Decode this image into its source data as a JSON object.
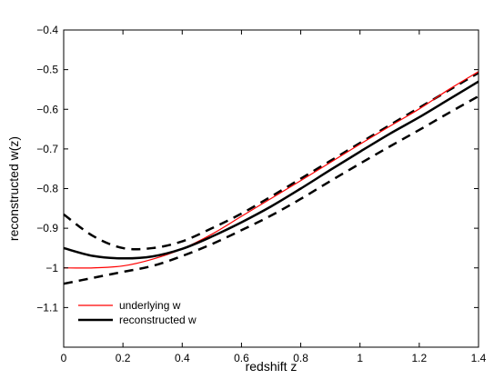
{
  "chart_data": {
    "type": "line",
    "xlabel": "redshift z",
    "ylabel": "reconstructed w(z)",
    "xlim": [
      0,
      1.4
    ],
    "ylim": [
      -1.2,
      -0.4
    ],
    "xticks": [
      0,
      0.2,
      0.4,
      0.6,
      0.8,
      1,
      1.2,
      1.4
    ],
    "xtick_labels": [
      "0",
      "0.2",
      "0.4",
      "0.6",
      "0.8",
      "1",
      "1.2",
      "1.4"
    ],
    "yticks": [
      -1.1,
      -1,
      -0.9,
      -0.8,
      -0.7,
      -0.6,
      -0.5,
      -0.4
    ],
    "ytick_labels": [
      "−1.1",
      "−1",
      "−0.9",
      "−0.8",
      "−0.7",
      "−0.6",
      "−0.5",
      "−0.4"
    ],
    "grid": false,
    "legend": "bottom-left",
    "x": [
      0,
      0.1,
      0.2,
      0.3,
      0.4,
      0.5,
      0.6,
      0.7,
      0.8,
      0.9,
      1.0,
      1.1,
      1.2,
      1.3,
      1.4
    ],
    "series": [
      {
        "name": "underlying w",
        "style": "solid-thin",
        "color": "#ff0000",
        "values": [
          -1.0,
          -1.0,
          -0.995,
          -0.978,
          -0.952,
          -0.915,
          -0.87,
          -0.825,
          -0.78,
          -0.734,
          -0.688,
          -0.643,
          -0.599,
          -0.55,
          -0.505
        ]
      },
      {
        "name": "reconstructed w",
        "style": "solid-thick",
        "color": "#000000",
        "values": [
          -0.95,
          -0.97,
          -0.976,
          -0.971,
          -0.952,
          -0.921,
          -0.885,
          -0.845,
          -0.8,
          -0.753,
          -0.707,
          -0.662,
          -0.62,
          -0.575,
          -0.53
        ]
      },
      {
        "name": "",
        "style": "dashed",
        "color": "#000000",
        "values": [
          -0.865,
          -0.92,
          -0.95,
          -0.95,
          -0.933,
          -0.9,
          -0.863,
          -0.82,
          -0.775,
          -0.73,
          -0.685,
          -0.64,
          -0.596,
          -0.552,
          -0.508
        ]
      },
      {
        "name": "",
        "style": "dashed",
        "color": "#000000",
        "values": [
          -1.04,
          -1.025,
          -1.01,
          -0.995,
          -0.97,
          -0.94,
          -0.905,
          -0.868,
          -0.826,
          -0.781,
          -0.737,
          -0.694,
          -0.652,
          -0.609,
          -0.567
        ]
      }
    ]
  }
}
